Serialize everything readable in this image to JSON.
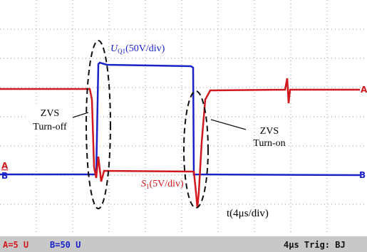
{
  "traces": {
    "u_label": "U",
    "u_sub": "Q1",
    "u_scale": "(50V/div)",
    "s_label": "S",
    "s_sub": "1",
    "s_scale": "(5V/div)",
    "time": "t(4μs/div)"
  },
  "annotations": {
    "turn_off": [
      "ZVS",
      "Turn-off"
    ],
    "turn_on": [
      "ZVS",
      "Turn-on"
    ]
  },
  "markers": {
    "a_right": "A",
    "b_right": "B",
    "a_left": "A",
    "b_left": "B"
  },
  "status": {
    "channel_a": "A=5 U",
    "channel_b": "B=50 U",
    "timebase": "4µs Trig: BJ"
  }
}
